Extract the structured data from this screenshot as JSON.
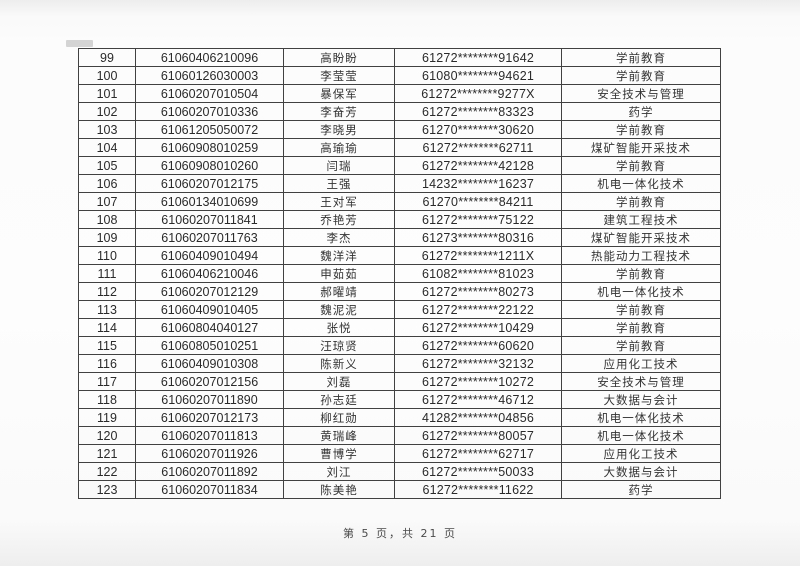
{
  "page": {
    "footer_label": "第 5 页，共 21 页"
  },
  "table": {
    "rows": [
      {
        "no": "99",
        "exam_id": "61060406210096",
        "name": "高盼盼",
        "masked_id": "61272********91642",
        "major": "学前教育"
      },
      {
        "no": "100",
        "exam_id": "61060126030003",
        "name": "李莹莹",
        "masked_id": "61080********94621",
        "major": "学前教育"
      },
      {
        "no": "101",
        "exam_id": "61060207010504",
        "name": "暴保军",
        "masked_id": "61272********9277X",
        "major": "安全技术与管理"
      },
      {
        "no": "102",
        "exam_id": "61060207010336",
        "name": "李奋芳",
        "masked_id": "61272********83323",
        "major": "药学"
      },
      {
        "no": "103",
        "exam_id": "61061205050072",
        "name": "李晓男",
        "masked_id": "61270********30620",
        "major": "学前教育"
      },
      {
        "no": "104",
        "exam_id": "61060908010259",
        "name": "高瑜瑜",
        "masked_id": "61272********62711",
        "major": "煤矿智能开采技术"
      },
      {
        "no": "105",
        "exam_id": "61060908010260",
        "name": "闫瑞",
        "masked_id": "61272********42128",
        "major": "学前教育"
      },
      {
        "no": "106",
        "exam_id": "61060207012175",
        "name": "王强",
        "masked_id": "14232********16237",
        "major": "机电一体化技术"
      },
      {
        "no": "107",
        "exam_id": "61060134010699",
        "name": "王对军",
        "masked_id": "61270********84211",
        "major": "学前教育"
      },
      {
        "no": "108",
        "exam_id": "61060207011841",
        "name": "乔艳芳",
        "masked_id": "61272********75122",
        "major": "建筑工程技术"
      },
      {
        "no": "109",
        "exam_id": "61060207011763",
        "name": "李杰",
        "masked_id": "61273********80316",
        "major": "煤矿智能开采技术"
      },
      {
        "no": "110",
        "exam_id": "61060409010494",
        "name": "魏洋洋",
        "masked_id": "61272********1211X",
        "major": "热能动力工程技术"
      },
      {
        "no": "111",
        "exam_id": "61060406210046",
        "name": "申茹茹",
        "masked_id": "61082********81023",
        "major": "学前教育"
      },
      {
        "no": "112",
        "exam_id": "61060207012129",
        "name": "郝曜靖",
        "masked_id": "61272********80273",
        "major": "机电一体化技术"
      },
      {
        "no": "113",
        "exam_id": "61060409010405",
        "name": "魏泥泥",
        "masked_id": "61272********22122",
        "major": "学前教育"
      },
      {
        "no": "114",
        "exam_id": "61060804040127",
        "name": "张悦",
        "masked_id": "61272********10429",
        "major": "学前教育"
      },
      {
        "no": "115",
        "exam_id": "61060805010251",
        "name": "汪琼贤",
        "masked_id": "61272********60620",
        "major": "学前教育"
      },
      {
        "no": "116",
        "exam_id": "61060409010308",
        "name": "陈新义",
        "masked_id": "61272********32132",
        "major": "应用化工技术"
      },
      {
        "no": "117",
        "exam_id": "61060207012156",
        "name": "刘磊",
        "masked_id": "61272********10272",
        "major": "安全技术与管理"
      },
      {
        "no": "118",
        "exam_id": "61060207011890",
        "name": "孙志廷",
        "masked_id": "61272********46712",
        "major": "大数据与会计"
      },
      {
        "no": "119",
        "exam_id": "61060207012173",
        "name": "柳红勋",
        "masked_id": "41282********04856",
        "major": "机电一体化技术"
      },
      {
        "no": "120",
        "exam_id": "61060207011813",
        "name": "黄瑞峰",
        "masked_id": "61272********80057",
        "major": "机电一体化技术"
      },
      {
        "no": "121",
        "exam_id": "61060207011926",
        "name": "曹博学",
        "masked_id": "61272********62717",
        "major": "应用化工技术"
      },
      {
        "no": "122",
        "exam_id": "61060207011892",
        "name": "刘江",
        "masked_id": "61272********50033",
        "major": "大数据与会计"
      },
      {
        "no": "123",
        "exam_id": "61060207011834",
        "name": "陈美艳",
        "masked_id": "61272********11622",
        "major": "药学"
      }
    ]
  }
}
